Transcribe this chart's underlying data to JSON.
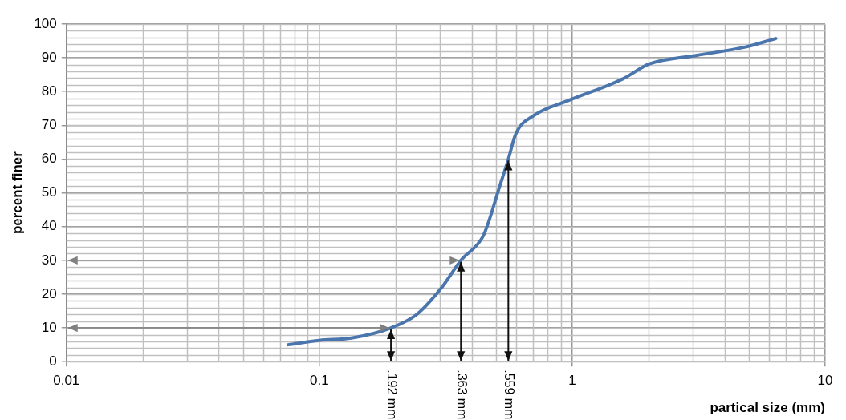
{
  "chart_data": {
    "type": "line",
    "xlabel": "partical size (mm)",
    "ylabel": "percent finer",
    "x": [
      0.0752,
      0.1,
      0.134,
      0.192,
      0.243,
      0.305,
      0.363,
      0.443,
      0.47,
      0.507,
      0.559,
      0.597,
      0.709,
      0.97,
      1.58,
      2.02,
      3.09,
      4.84,
      6.38
    ],
    "series": [
      {
        "color": "#4a76ad",
        "values": [
          5,
          6.3,
          7,
          10,
          14,
          22,
          30,
          37,
          42,
          50,
          60,
          67.3,
          73,
          77.4,
          83.7,
          88.2,
          90.7,
          93.2,
          95.7
        ]
      }
    ],
    "log": "x",
    "xlim": [
      0.01,
      10
    ],
    "xticks": [
      0.01,
      0.1,
      1,
      10
    ],
    "ylim": [
      0,
      100
    ],
    "yticks": [
      0,
      10,
      20,
      30,
      40,
      50,
      60,
      70,
      80,
      90,
      100
    ],
    "grid": true,
    "legend": false,
    "marker": "none",
    "line_style": "solid",
    "ref_lines": [
      {
        "axis": "y",
        "value": 30,
        "color": "#808080"
      },
      {
        "axis": "y",
        "value": 10,
        "color": "#808080"
      }
    ],
    "annotations": [
      {
        "text": ".192 mm",
        "x": 0.192,
        "y": 10
      },
      {
        "text": ".363 mm",
        "x": 0.363,
        "y": 30
      },
      {
        "text": ".559 mm",
        "x": 0.559,
        "y": 60
      }
    ]
  }
}
